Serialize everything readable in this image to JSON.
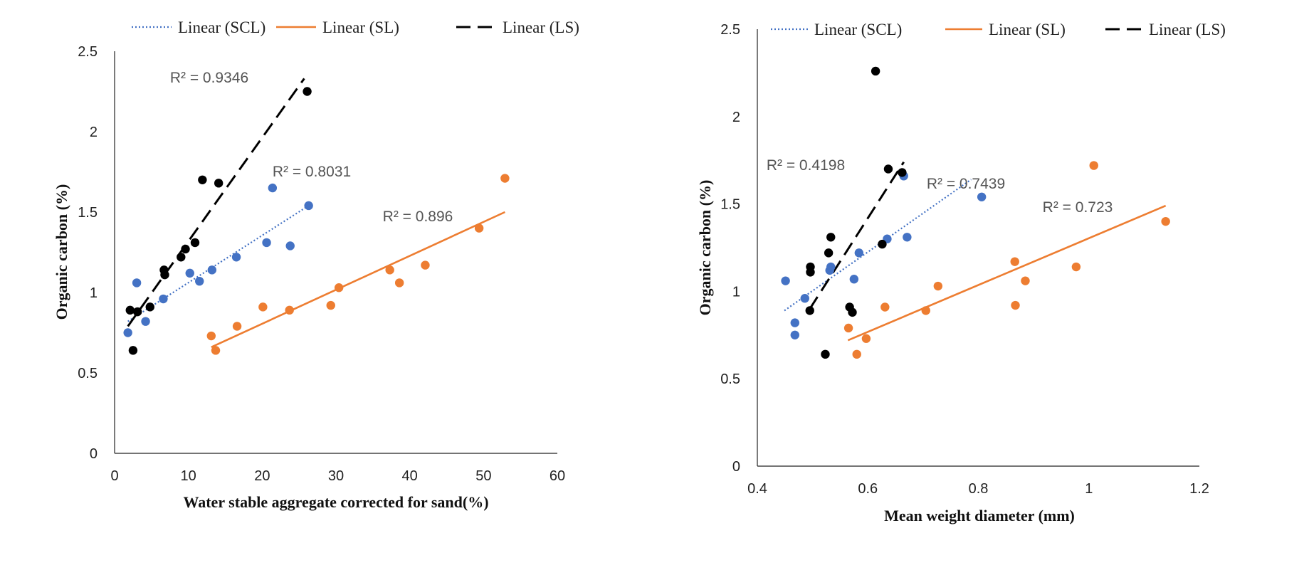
{
  "colors": {
    "SCL": "#4472C4",
    "SL": "#ED7D31",
    "LS": "#000000"
  },
  "legend_labels": [
    "Linear (SCL)",
    "Linear (SL)",
    "Linear (LS)"
  ],
  "chart_data": [
    {
      "type": "scatter",
      "title": "",
      "xlabel": "Water stable aggregate corrected for sand(%)",
      "ylabel": "Organic carbon (%)",
      "xlim": [
        0,
        60
      ],
      "ylim": [
        0,
        2.5
      ],
      "xticks": [
        0,
        10,
        20,
        30,
        40,
        50,
        60
      ],
      "yticks": [
        0,
        0.5,
        1,
        1.5,
        2,
        2.5
      ],
      "legend_position": "top",
      "grid": false,
      "series": [
        {
          "key": "SCL",
          "points": [
            [
              1.8,
              0.75
            ],
            [
              3,
              1.06
            ],
            [
              4.2,
              0.82
            ],
            [
              6.6,
              0.96
            ],
            [
              10.2,
              1.12
            ],
            [
              11.5,
              1.07
            ],
            [
              13.2,
              1.14
            ],
            [
              16.5,
              1.22
            ],
            [
              20.6,
              1.31
            ],
            [
              21.4,
              1.65
            ],
            [
              23.8,
              1.29
            ],
            [
              26.3,
              1.54
            ]
          ],
          "trend": [
            [
              1.8,
              0.82
            ],
            [
              26.3,
              1.54
            ]
          ],
          "r2": "R² = 0.8031"
        },
        {
          "key": "SL",
          "points": [
            [
              13.1,
              0.73
            ],
            [
              13.7,
              0.64
            ],
            [
              16.6,
              0.79
            ],
            [
              20.1,
              0.91
            ],
            [
              23.7,
              0.89
            ],
            [
              29.3,
              0.92
            ],
            [
              30.4,
              1.03
            ],
            [
              37.3,
              1.14
            ],
            [
              38.6,
              1.06
            ],
            [
              42.1,
              1.17
            ],
            [
              49.4,
              1.4
            ],
            [
              52.9,
              1.71
            ]
          ],
          "trend": [
            [
              13.1,
              0.66
            ],
            [
              52.9,
              1.5
            ]
          ],
          "r2": "R² = 0.896"
        },
        {
          "key": "LS",
          "points": [
            [
              2.1,
              0.89
            ],
            [
              2.5,
              0.64
            ],
            [
              3.1,
              0.88
            ],
            [
              4.8,
              0.91
            ],
            [
              6.7,
              1.14
            ],
            [
              6.8,
              1.11
            ],
            [
              9,
              1.22
            ],
            [
              9.6,
              1.27
            ],
            [
              10.9,
              1.31
            ],
            [
              11.9,
              1.7
            ],
            [
              14.1,
              1.68
            ],
            [
              26.1,
              2.25
            ]
          ],
          "trend": [
            [
              1.8,
              0.79
            ],
            [
              25.7,
              2.33
            ]
          ],
          "r2": "R² = 0.9346"
        }
      ]
    },
    {
      "type": "scatter",
      "title": "",
      "xlabel": "Mean weight diameter (mm)",
      "ylabel": "Organic carbon (%)",
      "xlim": [
        0.4,
        1.2
      ],
      "ylim": [
        0,
        2.5
      ],
      "xticks": [
        0.4,
        0.6,
        0.8,
        1,
        1.2
      ],
      "yticks": [
        0,
        0.5,
        1,
        1.5,
        2,
        2.5
      ],
      "legend_position": "top",
      "grid": false,
      "series": [
        {
          "key": "SCL",
          "points": [
            [
              0.451,
              1.06
            ],
            [
              0.468,
              0.82
            ],
            [
              0.468,
              0.75
            ],
            [
              0.486,
              0.96
            ],
            [
              0.531,
              1.12
            ],
            [
              0.533,
              1.14
            ],
            [
              0.575,
              1.07
            ],
            [
              0.584,
              1.22
            ],
            [
              0.635,
              1.3
            ],
            [
              0.665,
              1.66
            ],
            [
              0.671,
              1.31
            ],
            [
              0.806,
              1.54
            ]
          ],
          "trend": [
            [
              0.449,
              0.89
            ],
            [
              0.787,
              1.64
            ]
          ],
          "r2": "R² = 0.7439"
        },
        {
          "key": "SL",
          "points": [
            [
              0.565,
              0.79
            ],
            [
              0.58,
              0.64
            ],
            [
              0.597,
              0.73
            ],
            [
              0.631,
              0.91
            ],
            [
              0.705,
              0.89
            ],
            [
              0.727,
              1.03
            ],
            [
              0.866,
              1.17
            ],
            [
              0.867,
              0.92
            ],
            [
              0.885,
              1.06
            ],
            [
              0.977,
              1.14
            ],
            [
              1.009,
              1.72
            ],
            [
              1.139,
              1.4
            ]
          ],
          "trend": [
            [
              0.564,
              0.72
            ],
            [
              1.139,
              1.49
            ]
          ],
          "r2": "R² = 0.723"
        },
        {
          "key": "LS",
          "points": [
            [
              0.495,
              0.89
            ],
            [
              0.496,
              1.11
            ],
            [
              0.496,
              1.14
            ],
            [
              0.523,
              0.64
            ],
            [
              0.529,
              1.22
            ],
            [
              0.533,
              1.31
            ],
            [
              0.567,
              0.91
            ],
            [
              0.572,
              0.88
            ],
            [
              0.614,
              2.26
            ],
            [
              0.626,
              1.27
            ],
            [
              0.637,
              1.7
            ],
            [
              0.662,
              1.68
            ]
          ],
          "trend": [
            [
              0.495,
              0.9
            ],
            [
              0.665,
              1.74
            ]
          ],
          "r2": "R² = 0.4198"
        }
      ]
    }
  ]
}
